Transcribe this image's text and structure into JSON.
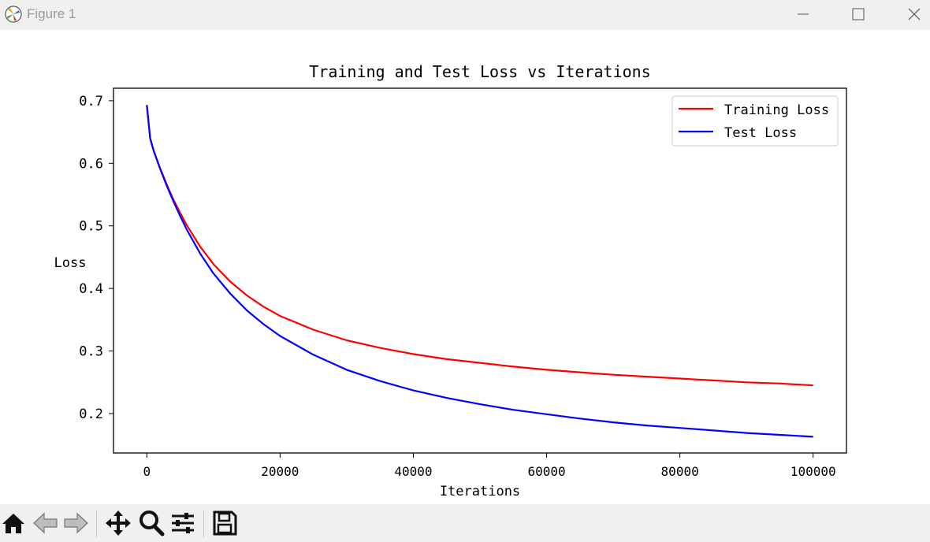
{
  "window": {
    "title": "Figure 1",
    "icons": [
      "matplotlib-logo-icon",
      "minimize-icon",
      "maximize-icon",
      "close-icon"
    ]
  },
  "toolbar": {
    "icons": [
      "home-icon",
      "back-arrow-icon",
      "forward-arrow-icon",
      "pan-icon",
      "zoom-icon",
      "configure-subplots-icon",
      "save-icon"
    ]
  },
  "chart_data": {
    "type": "line",
    "title": "Training and Test Loss vs Iterations",
    "xlabel": "Iterations",
    "ylabel": "Loss",
    "xlim": [
      -5000,
      105000
    ],
    "ylim": [
      0.137,
      0.72
    ],
    "xticks": [
      0,
      20000,
      40000,
      60000,
      80000,
      100000
    ],
    "xtick_labels": [
      "0",
      "20000",
      "40000",
      "60000",
      "80000",
      "100000"
    ],
    "yticks": [
      0.2,
      0.3,
      0.4,
      0.5,
      0.6,
      0.7
    ],
    "ytick_labels": [
      "0.2",
      "0.3",
      "0.4",
      "0.5",
      "0.6",
      "0.7"
    ],
    "grid": false,
    "legend_position": "top-right",
    "x": [
      0,
      500,
      1000,
      2000,
      3000,
      4000,
      5000,
      6000,
      8000,
      10000,
      12500,
      15000,
      17500,
      20000,
      25000,
      30000,
      35000,
      40000,
      45000,
      50000,
      55000,
      60000,
      65000,
      70000,
      75000,
      80000,
      85000,
      90000,
      95000,
      100000
    ],
    "series": [
      {
        "name": "Training Loss",
        "color": "#ff0000",
        "values": [
          0.693,
          0.64,
          0.621,
          0.592,
          0.566,
          0.542,
          0.521,
          0.501,
          0.467,
          0.439,
          0.411,
          0.389,
          0.371,
          0.356,
          0.334,
          0.317,
          0.305,
          0.295,
          0.287,
          0.281,
          0.275,
          0.27,
          0.266,
          0.262,
          0.259,
          0.256,
          0.253,
          0.25,
          0.248,
          0.245
        ]
      },
      {
        "name": "Test Loss",
        "color": "#0000ff",
        "values": [
          0.693,
          0.64,
          0.621,
          0.591,
          0.564,
          0.539,
          0.516,
          0.494,
          0.456,
          0.424,
          0.392,
          0.365,
          0.343,
          0.324,
          0.294,
          0.27,
          0.252,
          0.237,
          0.225,
          0.215,
          0.206,
          0.199,
          0.192,
          0.186,
          0.181,
          0.177,
          0.173,
          0.169,
          0.166,
          0.163
        ]
      }
    ]
  }
}
